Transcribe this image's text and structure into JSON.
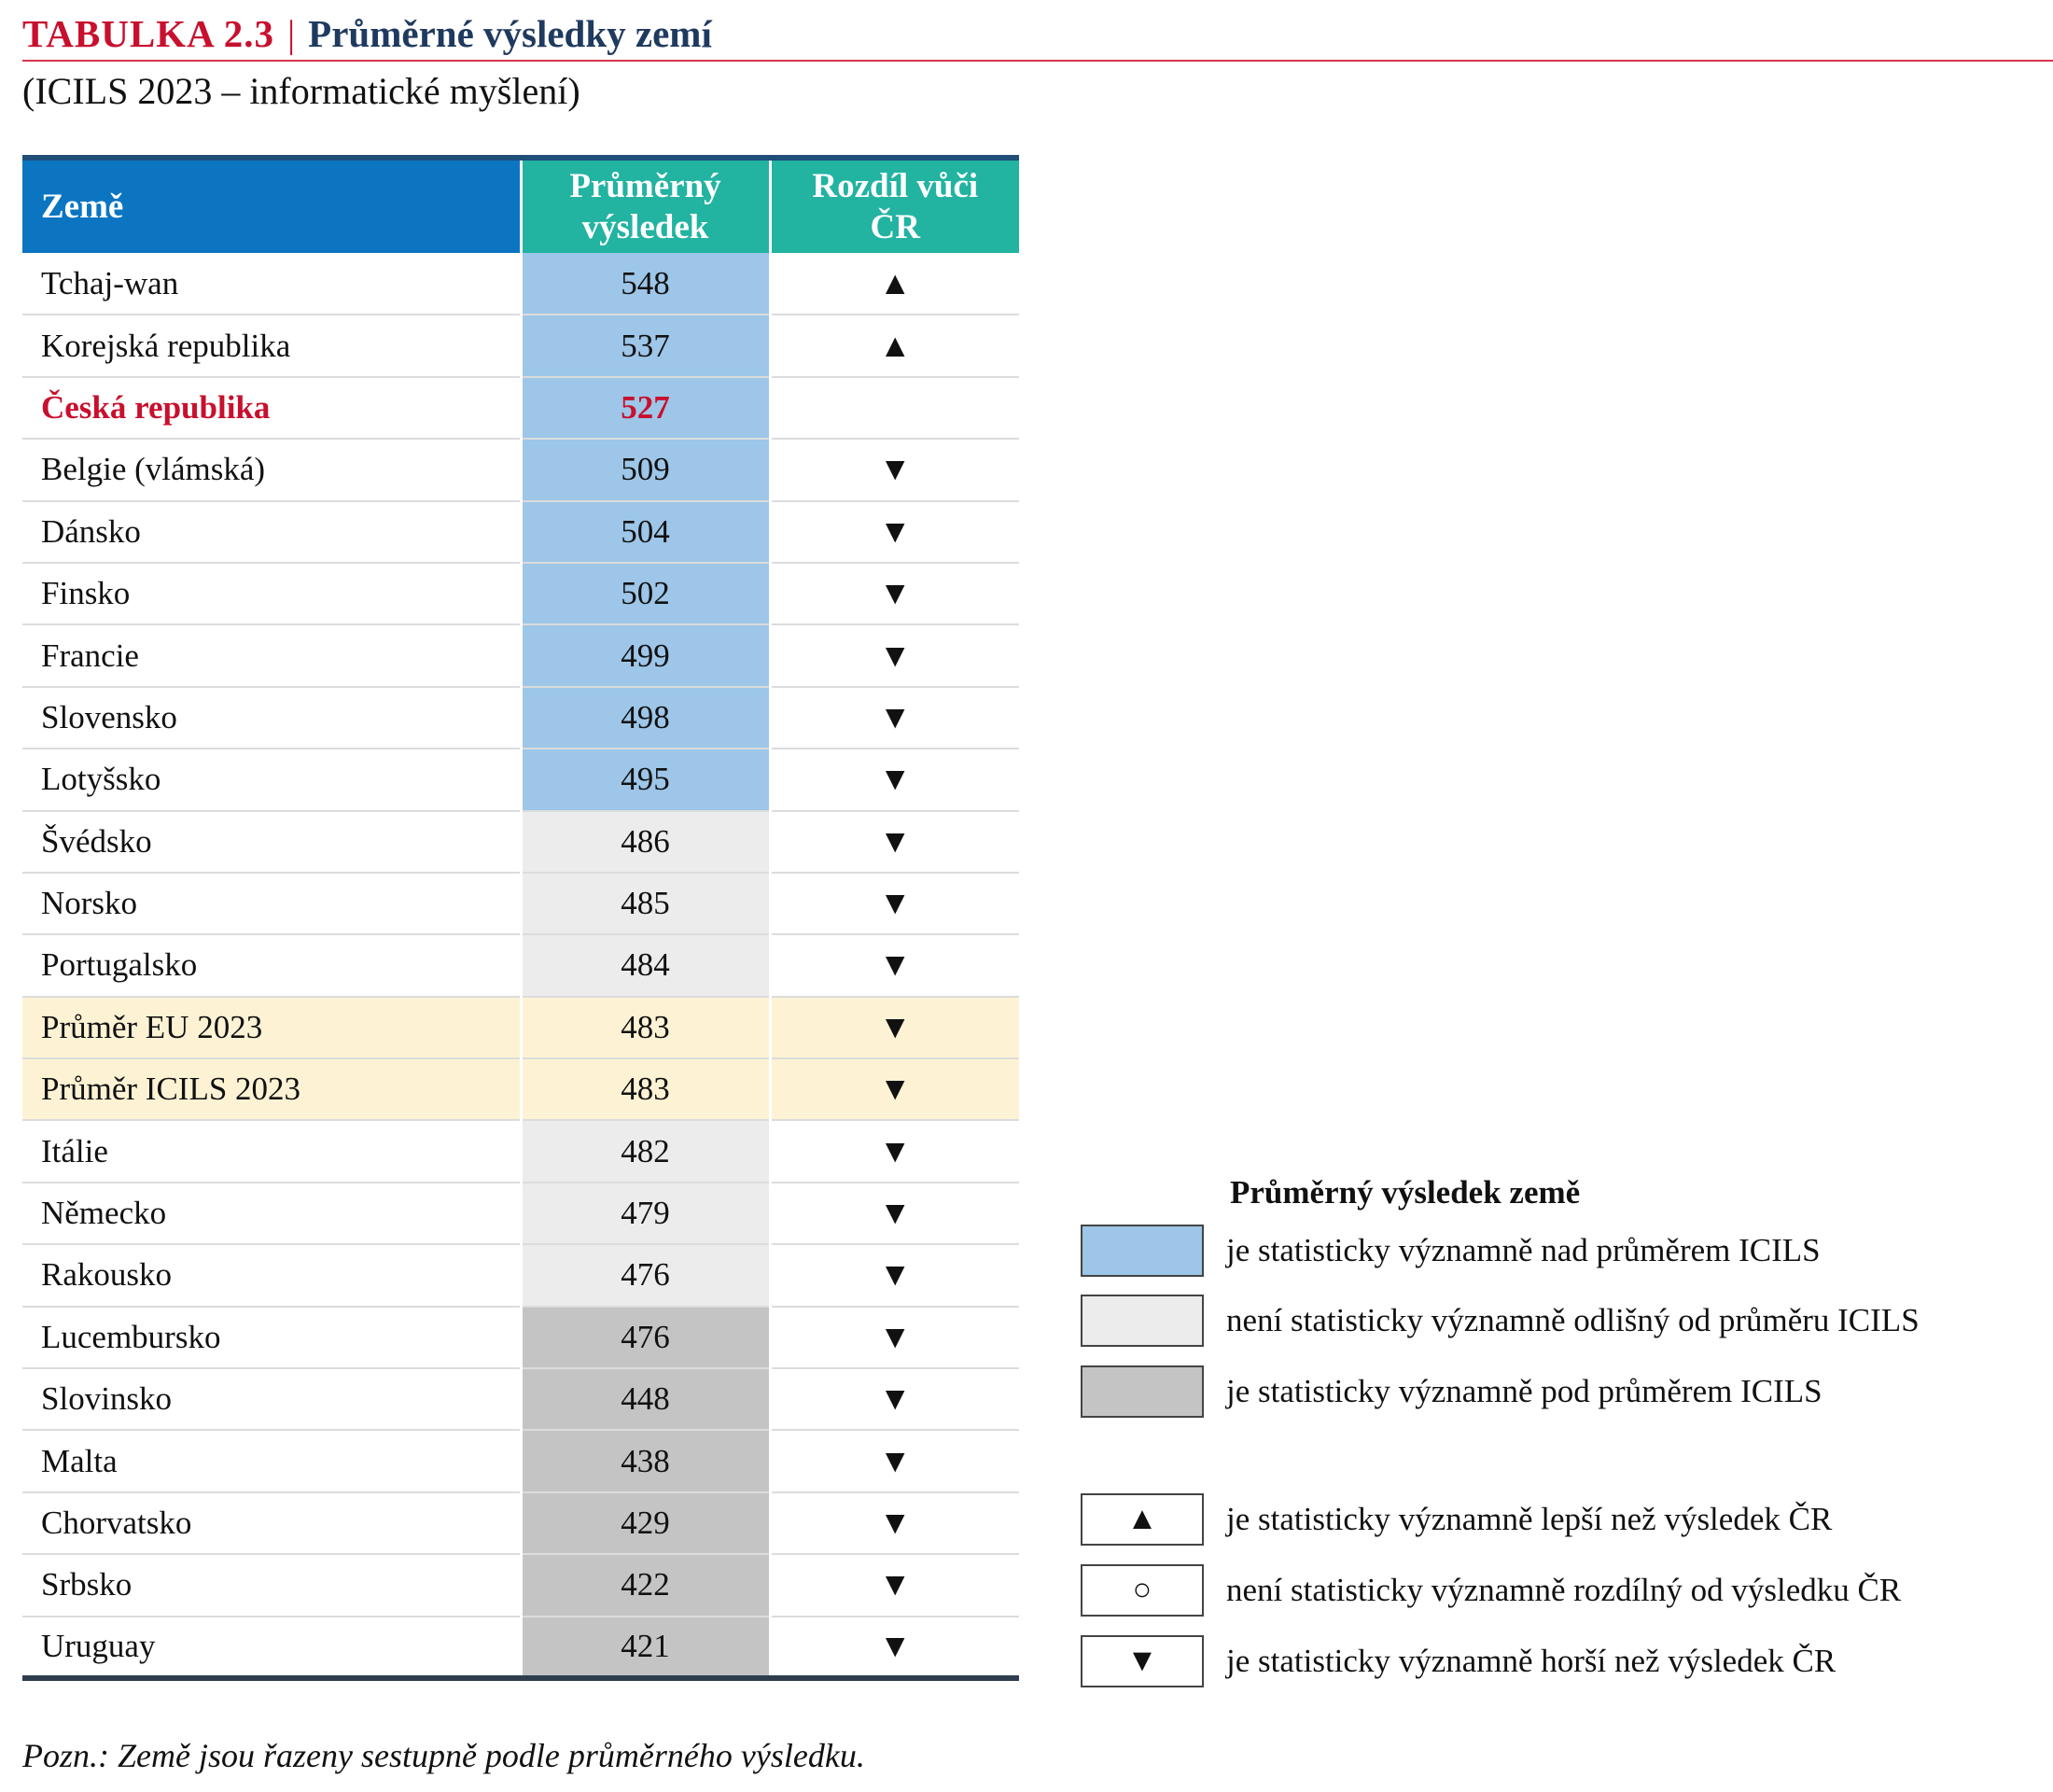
{
  "header": {
    "prefix": "TABULKA 2.3",
    "separator": "|",
    "title": "Průměrné výsledky zemí",
    "subtitle": "(ICILS 2023 – informatické myšlení)"
  },
  "table": {
    "columns": [
      "Země",
      "Průměrný výsledek",
      "Rozdíl vůči ČR"
    ],
    "rows": [
      {
        "country": "Tchaj-wan",
        "score": "548",
        "diff": "▲",
        "category": "above"
      },
      {
        "country": "Korejská republika",
        "score": "537",
        "diff": "▲",
        "category": "above"
      },
      {
        "country": "Česká republika",
        "score": "527",
        "diff": "",
        "category": "above",
        "highlight": true
      },
      {
        "country": "Belgie (vlámská)",
        "score": "509",
        "diff": "▼",
        "category": "above"
      },
      {
        "country": "Dánsko",
        "score": "504",
        "diff": "▼",
        "category": "above"
      },
      {
        "country": "Finsko",
        "score": "502",
        "diff": "▼",
        "category": "above"
      },
      {
        "country": "Francie",
        "score": "499",
        "diff": "▼",
        "category": "above"
      },
      {
        "country": "Slovensko",
        "score": "498",
        "diff": "▼",
        "category": "above"
      },
      {
        "country": "Lotyšsko",
        "score": "495",
        "diff": "▼",
        "category": "above"
      },
      {
        "country": "Švédsko",
        "score": "486",
        "diff": "▼",
        "category": "same"
      },
      {
        "country": "Norsko",
        "score": "485",
        "diff": "▼",
        "category": "same"
      },
      {
        "country": "Portugalsko",
        "score": "484",
        "diff": "▼",
        "category": "same"
      },
      {
        "country": "Průměr EU 2023",
        "score": "483",
        "diff": "▼",
        "category": "average"
      },
      {
        "country": "Průměr ICILS 2023",
        "score": "483",
        "diff": "▼",
        "category": "average"
      },
      {
        "country": "Itálie",
        "score": "482",
        "diff": "▼",
        "category": "same"
      },
      {
        "country": "Německo",
        "score": "479",
        "diff": "▼",
        "category": "same"
      },
      {
        "country": "Rakousko",
        "score": "476",
        "diff": "▼",
        "category": "same"
      },
      {
        "country": "Lucembursko",
        "score": "476",
        "diff": "▼",
        "category": "below"
      },
      {
        "country": "Slovinsko",
        "score": "448",
        "diff": "▼",
        "category": "below"
      },
      {
        "country": "Malta",
        "score": "438",
        "diff": "▼",
        "category": "below"
      },
      {
        "country": "Chorvatsko",
        "score": "429",
        "diff": "▼",
        "category": "below"
      },
      {
        "country": "Srbsko",
        "score": "422",
        "diff": "▼",
        "category": "below"
      },
      {
        "country": "Uruguay",
        "score": "421",
        "diff": "▼",
        "category": "below"
      }
    ]
  },
  "colors": {
    "above": "#9dc6e8",
    "same": "#ececec",
    "below": "#c4c4c4",
    "average": "#fdf3d4",
    "highlight": "#c8102e",
    "header_country": "#0b75c2",
    "header_num": "#22b3a1"
  },
  "legend": {
    "title": "Průměrný výsledek země",
    "color_items": [
      {
        "swatch": "above",
        "text": "je statisticky významně nad průměrem ICILS"
      },
      {
        "swatch": "same",
        "text": "není statisticky významně odlišný od průměru ICILS"
      },
      {
        "swatch": "below",
        "text": "je statisticky významně pod průměrem ICILS"
      }
    ],
    "symbol_items": [
      {
        "symbol": "▲",
        "text": "je statisticky významně lepší než výsledek ČR"
      },
      {
        "symbol": "○",
        "text": "není statisticky významně rozdílný od výsledku ČR"
      },
      {
        "symbol": "▼",
        "text": "je statisticky významně horší než výsledek ČR"
      }
    ]
  },
  "note": "Pozn.: Země jsou řazeny sestupně podle průměrného výsledku."
}
